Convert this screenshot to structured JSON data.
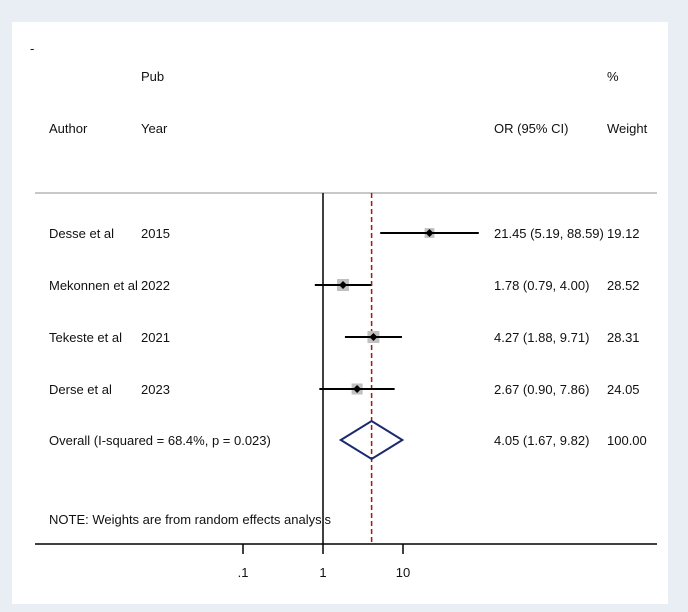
{
  "chart_data": {
    "type": "forest",
    "corner_mark": "-",
    "headers": {
      "author": "Author",
      "pub_line1": "Pub",
      "pub_line2": "Year",
      "or": "OR (95% CI)",
      "weight_line1": "%",
      "weight_line2": "Weight"
    },
    "studies": [
      {
        "author": "Desse et al",
        "year": "2015",
        "or": 21.45,
        "lower": 5.19,
        "upper": 88.59,
        "or_text": "21.45 (5.19, 88.59)",
        "weight": 19.12,
        "weight_text": "19.12"
      },
      {
        "author": "Mekonnen et al",
        "year": "2022",
        "or": 1.78,
        "lower": 0.79,
        "upper": 4.0,
        "or_text": "1.78 (0.79, 4.00)",
        "weight": 28.52,
        "weight_text": "28.52"
      },
      {
        "author": "Tekeste et al",
        "year": "2021",
        "or": 4.27,
        "lower": 1.88,
        "upper": 9.71,
        "or_text": "4.27 (1.88, 9.71)",
        "weight": 28.31,
        "weight_text": "28.31"
      },
      {
        "author": "Derse et al",
        "year": "2023",
        "or": 2.67,
        "lower": 0.9,
        "upper": 7.86,
        "or_text": "2.67 (0.90, 7.86)",
        "weight": 24.05,
        "weight_text": "24.05"
      }
    ],
    "overall": {
      "label": "Overall  (I-squared = 68.4%, p = 0.023)",
      "or": 4.05,
      "lower": 1.67,
      "upper": 9.82,
      "or_text": "4.05 (1.67, 9.82)",
      "weight_text": "100.00"
    },
    "note": "NOTE: Weights are from random effects analysis",
    "x_scale": "log",
    "x_ticks": [
      0.1,
      1,
      10
    ],
    "x_tick_labels": [
      ".1",
      "1",
      "10"
    ],
    "null_value": 1,
    "colors": {
      "background": "#e8eef4",
      "plot_area": "#ffffff",
      "ci_line": "#000000",
      "weight_box": "#c0c0c0",
      "diamond": "#1a2a6c",
      "overall_line": "#a01818",
      "header_rule": "#c8c8c8"
    }
  }
}
